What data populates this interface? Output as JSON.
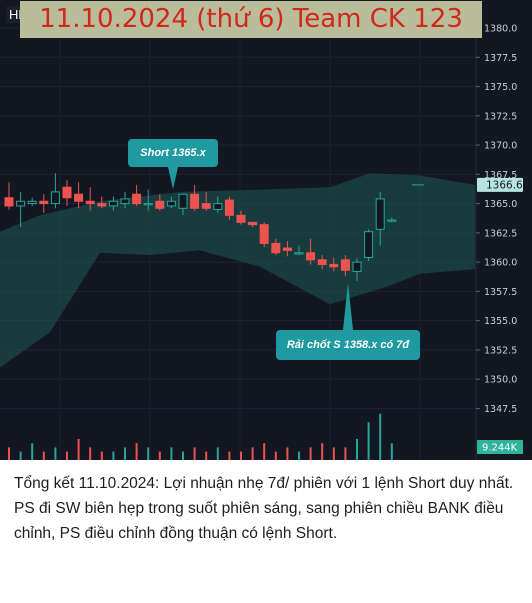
{
  "header": {
    "hd_label": "HD",
    "title": "11.10.2024 (thứ 6) Team CK 123"
  },
  "chart_data": {
    "type": "candlestick",
    "y_ticks": [
      "1380.0",
      "1377.5",
      "1375.0",
      "1372.5",
      "1370.0",
      "1367.5",
      "1365.0",
      "1362.5",
      "1360.0",
      "1357.5",
      "1355.0",
      "1352.5",
      "1350.0",
      "1347.5"
    ],
    "ylim": [
      1345.4,
      1381.2
    ],
    "current_price": "1366.6",
    "volume_label": "9.244K",
    "colors": {
      "up": "#26a69a",
      "down": "#ef5350",
      "band": "#1d5a55",
      "background": "#131722"
    },
    "candles": [
      {
        "o": 1365.5,
        "h": 1366.8,
        "l": 1364.5,
        "c": 1364.8
      },
      {
        "o": 1364.8,
        "h": 1366.0,
        "l": 1363.0,
        "c": 1365.2
      },
      {
        "o": 1365.0,
        "h": 1365.5,
        "l": 1364.8,
        "c": 1365.2
      },
      {
        "o": 1365.2,
        "h": 1365.8,
        "l": 1364.2,
        "c": 1365.0
      },
      {
        "o": 1365.0,
        "h": 1367.6,
        "l": 1364.6,
        "c": 1366.0
      },
      {
        "o": 1366.4,
        "h": 1367.0,
        "l": 1364.8,
        "c": 1365.5
      },
      {
        "o": 1365.8,
        "h": 1366.8,
        "l": 1364.6,
        "c": 1365.2
      },
      {
        "o": 1365.2,
        "h": 1366.4,
        "l": 1364.4,
        "c": 1365.0
      },
      {
        "o": 1365.0,
        "h": 1365.6,
        "l": 1364.6,
        "c": 1364.8
      },
      {
        "o": 1364.8,
        "h": 1365.6,
        "l": 1364.4,
        "c": 1365.2
      },
      {
        "o": 1365.0,
        "h": 1366.0,
        "l": 1364.6,
        "c": 1365.4
      },
      {
        "o": 1365.8,
        "h": 1366.6,
        "l": 1364.8,
        "c": 1365.0
      },
      {
        "o": 1365.0,
        "h": 1366.2,
        "l": 1364.4,
        "c": 1365.0
      },
      {
        "o": 1365.2,
        "h": 1365.8,
        "l": 1364.4,
        "c": 1364.6
      },
      {
        "o": 1364.8,
        "h": 1365.6,
        "l": 1364.6,
        "c": 1365.2
      },
      {
        "o": 1364.6,
        "h": 1365.8,
        "l": 1364.0,
        "c": 1365.8
      },
      {
        "o": 1365.8,
        "h": 1366.6,
        "l": 1364.4,
        "c": 1364.6
      },
      {
        "o": 1365.0,
        "h": 1366.0,
        "l": 1364.4,
        "c": 1364.6
      },
      {
        "o": 1364.5,
        "h": 1365.6,
        "l": 1364.2,
        "c": 1365.0
      },
      {
        "o": 1365.3,
        "h": 1365.6,
        "l": 1363.6,
        "c": 1364.0
      },
      {
        "o": 1364.0,
        "h": 1364.4,
        "l": 1363.2,
        "c": 1363.4
      },
      {
        "o": 1363.4,
        "h": 1363.4,
        "l": 1363.0,
        "c": 1363.2
      },
      {
        "o": 1363.2,
        "h": 1363.4,
        "l": 1361.3,
        "c": 1361.6
      },
      {
        "o": 1361.6,
        "h": 1362.0,
        "l": 1360.6,
        "c": 1360.8
      },
      {
        "o": 1361.2,
        "h": 1361.8,
        "l": 1360.5,
        "c": 1361.0
      },
      {
        "o": 1360.8,
        "h": 1361.4,
        "l": 1360.6,
        "c": 1360.8
      },
      {
        "o": 1360.8,
        "h": 1362.0,
        "l": 1359.8,
        "c": 1360.2
      },
      {
        "o": 1360.2,
        "h": 1360.6,
        "l": 1359.4,
        "c": 1359.8
      },
      {
        "o": 1359.8,
        "h": 1360.4,
        "l": 1359.2,
        "c": 1359.6
      },
      {
        "o": 1360.2,
        "h": 1360.6,
        "l": 1358.8,
        "c": 1359.3
      },
      {
        "o": 1359.2,
        "h": 1360.3,
        "l": 1358.4,
        "c": 1360.0
      },
      {
        "o": 1360.4,
        "h": 1362.8,
        "l": 1360.1,
        "c": 1362.6
      },
      {
        "o": 1362.8,
        "h": 1366.0,
        "l": 1361.4,
        "c": 1365.4
      },
      {
        "o": 1363.6,
        "h": 1363.8,
        "l": 1363.4,
        "c": 1363.6
      }
    ]
  },
  "annotations": {
    "entry": "Short 1365.x",
    "take_profit": "Rải chốt S 1358.x có 7đ"
  },
  "caption": {
    "text": "Tổng kết 11.10.2024: Lợi nhuận nhẹ 7đ/ phiên với 1 lệnh Short duy nhất. PS đi SW biên hẹp trong suốt phiên sáng, sang phiên chiều BANK điều chỉnh, PS điều chỉnh đồng thuận có lệnh Short."
  }
}
